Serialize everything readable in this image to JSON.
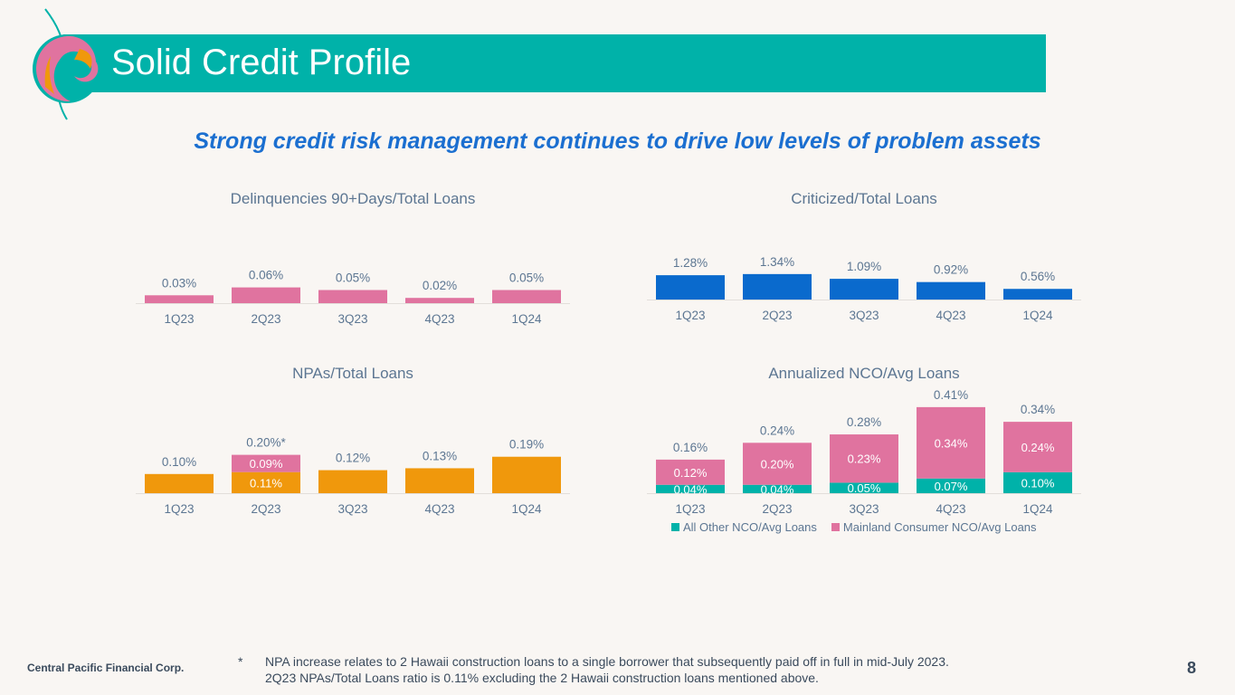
{
  "header": {
    "title": "Solid Credit Profile",
    "subtitle": "Strong credit risk management continues to drive low levels of problem assets"
  },
  "colors": {
    "teal": "#00B2A9",
    "pink": "#E0739F",
    "blue": "#0A6ACD",
    "orange": "#F0980C",
    "subtitle": "#1B6FD0"
  },
  "chart_data": [
    {
      "id": "delinq",
      "type": "bar",
      "title": "Delinquencies 90+Days/Total Loans",
      "categories": [
        "1Q23",
        "2Q23",
        "3Q23",
        "4Q23",
        "1Q24"
      ],
      "series": [
        {
          "values": [
            0.03,
            0.06,
            0.05,
            0.02,
            0.05
          ],
          "color": "#E0739F"
        }
      ],
      "total_labels": [
        "0.03%",
        "0.06%",
        "0.05%",
        "0.02%",
        "0.05%"
      ],
      "unit": "%"
    },
    {
      "id": "crit",
      "type": "bar",
      "title": "Criticized/Total Loans",
      "categories": [
        "1Q23",
        "2Q23",
        "3Q23",
        "4Q23",
        "1Q24"
      ],
      "series": [
        {
          "values": [
            1.28,
            1.34,
            1.09,
            0.92,
            0.56
          ],
          "color": "#0A6ACD"
        }
      ],
      "total_labels": [
        "1.28%",
        "1.34%",
        "1.09%",
        "0.92%",
        "0.56%"
      ],
      "unit": "%"
    },
    {
      "id": "npa",
      "type": "bar",
      "title": "NPAs/Total Loans",
      "categories": [
        "1Q23",
        "2Q23",
        "3Q23",
        "4Q23",
        "1Q24"
      ],
      "series": [
        {
          "values": [
            0.1,
            0.11,
            0.12,
            0.13,
            0.19
          ],
          "color": "#F0980C",
          "labels": [
            "",
            "0.11%",
            "",
            "",
            ""
          ]
        },
        {
          "values": [
            0,
            0.09,
            0,
            0,
            0
          ],
          "color": "#E0739F",
          "labels": [
            "",
            "0.09%",
            "",
            "",
            ""
          ]
        }
      ],
      "total_labels": [
        "0.10%",
        "0.20%*",
        "0.12%",
        "0.13%",
        "0.19%"
      ],
      "unit": "%"
    },
    {
      "id": "nco",
      "type": "bar",
      "title": "Annualized NCO/Avg Loans",
      "categories": [
        "1Q23",
        "2Q23",
        "3Q23",
        "4Q23",
        "1Q24"
      ],
      "series": [
        {
          "name": "All Other NCO/Avg Loans",
          "values": [
            0.04,
            0.04,
            0.05,
            0.07,
            0.1
          ],
          "color": "#00B2A9",
          "labels": [
            "0.04%",
            "0.04%",
            "0.05%",
            "0.07%",
            "0.10%"
          ]
        },
        {
          "name": "Mainland Consumer NCO/Avg Loans",
          "values": [
            0.12,
            0.2,
            0.23,
            0.34,
            0.24
          ],
          "color": "#E0739F",
          "labels": [
            "0.12%",
            "0.20%",
            "0.23%",
            "0.34%",
            "0.24%"
          ]
        }
      ],
      "total_labels": [
        "0.16%",
        "0.24%",
        "0.28%",
        "0.41%",
        "0.34%"
      ],
      "unit": "%",
      "legend": "bottom"
    }
  ],
  "footer": {
    "company": "Central Pacific Financial Corp.",
    "asterisk": "*",
    "note_line1": "NPA increase relates to 2 Hawaii construction loans to a single borrower that subsequently paid off in full in mid-July 2023.",
    "note_line2": "2Q23 NPAs/Total Loans ratio is 0.11% excluding the 2 Hawaii construction loans mentioned above.",
    "page_number": "8"
  }
}
